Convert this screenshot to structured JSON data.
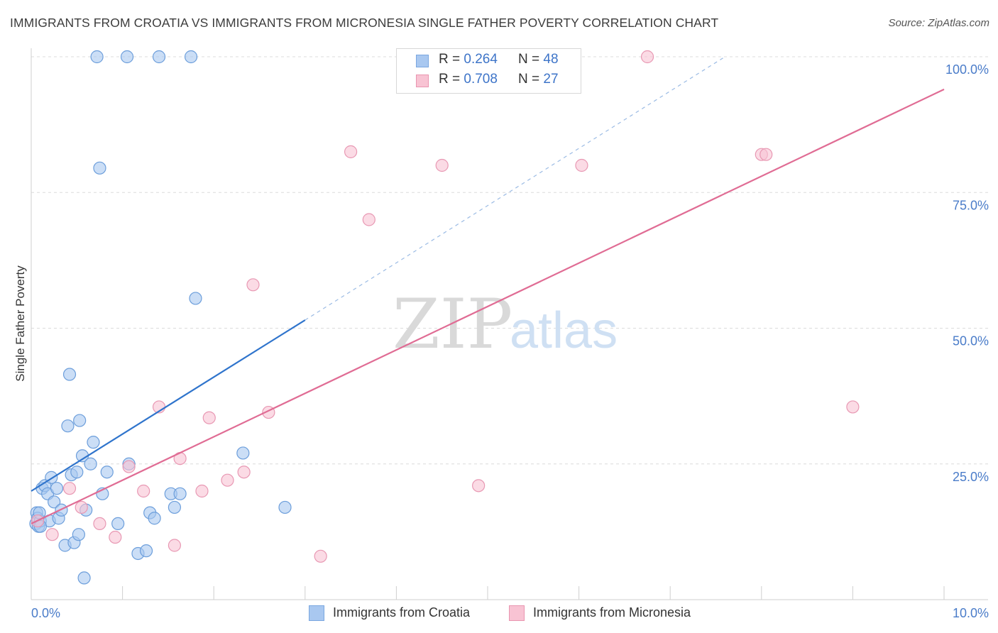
{
  "header": {
    "title": "IMMIGRANTS FROM CROATIA VS IMMIGRANTS FROM MICRONESIA SINGLE FATHER POVERTY CORRELATION CHART",
    "source": "Source: ZipAtlas.com"
  },
  "watermark": {
    "zip": "ZIP",
    "atlas": "atlas"
  },
  "legend": {
    "rows": [
      {
        "r_label": "R = ",
        "r_value": "0.264",
        "n_label": "N = ",
        "n_value": "48",
        "color": "#a9c8f0",
        "border": "#7aa7e0"
      },
      {
        "r_label": "R = ",
        "r_value": "0.708",
        "n_label": "N = ",
        "n_value": "27",
        "color": "#f8c3d3",
        "border": "#e995b0"
      }
    ]
  },
  "bottom_legend": [
    {
      "label": "Immigrants from Croatia",
      "color": "#a9c8f0",
      "border": "#7aa7e0"
    },
    {
      "label": "Immigrants from Micronesia",
      "color": "#f8c3d3",
      "border": "#e995b0"
    }
  ],
  "chart_data": {
    "type": "scatter",
    "title": "IMMIGRANTS FROM CROATIA VS IMMIGRANTS FROM MICRONESIA SINGLE FATHER POVERTY CORRELATION CHART",
    "xlabel": "",
    "ylabel": "Single Father Poverty",
    "xlim": [
      0,
      10
    ],
    "ylim": [
      0,
      100
    ],
    "x_ticks": [
      {
        "value": 0,
        "label": "0.0%"
      },
      {
        "value": 10,
        "label": "10.0%"
      }
    ],
    "y_ticks": [
      {
        "value": 25,
        "label": "25.0%"
      },
      {
        "value": 50,
        "label": "50.0%"
      },
      {
        "value": 75,
        "label": "75.0%"
      },
      {
        "value": 100,
        "label": "100.0%"
      }
    ],
    "grid": true,
    "legend_position": "top-center",
    "series": [
      {
        "name": "Immigrants from Croatia",
        "color": "#a9c8f0",
        "stroke": "#6c9edb",
        "line_color": "#2f74cc",
        "trend": {
          "x": [
            0.0,
            3.0
          ],
          "y": [
            20.0,
            51.5
          ],
          "dashed_to": [
            7.6,
            100.0
          ]
        },
        "points": [
          [
            0.05,
            14.0
          ],
          [
            0.06,
            16.0
          ],
          [
            0.07,
            15.0
          ],
          [
            0.08,
            13.5
          ],
          [
            0.1,
            14.5
          ],
          [
            0.12,
            20.5
          ],
          [
            0.15,
            21.0
          ],
          [
            0.18,
            19.5
          ],
          [
            0.2,
            14.5
          ],
          [
            0.22,
            22.5
          ],
          [
            0.25,
            18.0
          ],
          [
            0.28,
            20.5
          ],
          [
            0.3,
            15.0
          ],
          [
            0.33,
            16.5
          ],
          [
            0.37,
            10.0
          ],
          [
            0.4,
            32.0
          ],
          [
            0.42,
            41.5
          ],
          [
            0.44,
            23.0
          ],
          [
            0.47,
            10.5
          ],
          [
            0.5,
            23.5
          ],
          [
            0.52,
            12.0
          ],
          [
            0.53,
            33.0
          ],
          [
            0.56,
            26.5
          ],
          [
            0.6,
            16.5
          ],
          [
            0.65,
            25.0
          ],
          [
            0.68,
            29.0
          ],
          [
            0.72,
            100.0
          ],
          [
            0.75,
            79.5
          ],
          [
            0.78,
            19.5
          ],
          [
            0.83,
            23.5
          ],
          [
            0.95,
            14.0
          ],
          [
            1.05,
            100.0
          ],
          [
            1.07,
            25.0
          ],
          [
            1.17,
            8.5
          ],
          [
            1.26,
            9.0
          ],
          [
            1.3,
            16.0
          ],
          [
            1.35,
            15.0
          ],
          [
            1.4,
            100.0
          ],
          [
            1.53,
            19.5
          ],
          [
            1.57,
            17.0
          ],
          [
            1.63,
            19.5
          ],
          [
            1.75,
            100.0
          ],
          [
            1.8,
            55.5
          ],
          [
            2.32,
            27.0
          ],
          [
            2.78,
            17.0
          ],
          [
            0.58,
            4.0
          ],
          [
            0.1,
            13.5
          ],
          [
            0.09,
            16.0
          ]
        ]
      },
      {
        "name": "Immigrants from Micronesia",
        "color": "#f8c3d3",
        "stroke": "#e898b3",
        "line_color": "#e06c94",
        "trend": {
          "x": [
            0.0,
            10.0
          ],
          "y": [
            14.0,
            94.0
          ]
        },
        "points": [
          [
            0.07,
            14.5
          ],
          [
            0.23,
            12.0
          ],
          [
            0.42,
            20.5
          ],
          [
            0.55,
            17.0
          ],
          [
            0.75,
            14.0
          ],
          [
            0.92,
            11.5
          ],
          [
            1.07,
            24.5
          ],
          [
            1.23,
            20.0
          ],
          [
            1.4,
            35.5
          ],
          [
            1.57,
            10.0
          ],
          [
            1.63,
            26.0
          ],
          [
            1.87,
            20.0
          ],
          [
            1.95,
            33.5
          ],
          [
            2.15,
            22.0
          ],
          [
            2.33,
            23.5
          ],
          [
            2.43,
            58.0
          ],
          [
            2.6,
            34.5
          ],
          [
            3.17,
            8.0
          ],
          [
            3.5,
            82.5
          ],
          [
            3.7,
            70.0
          ],
          [
            4.5,
            80.0
          ],
          [
            4.9,
            21.0
          ],
          [
            6.03,
            80.0
          ],
          [
            6.75,
            100.0
          ],
          [
            8.0,
            82.0
          ],
          [
            8.05,
            82.0
          ],
          [
            9.0,
            35.5
          ]
        ]
      }
    ]
  }
}
